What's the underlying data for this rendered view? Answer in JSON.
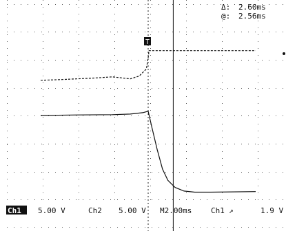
{
  "chart_data": {
    "type": "line",
    "title": "",
    "xlabel": "",
    "ylabel": "",
    "grid": true,
    "x_unit": "ms",
    "x_range": [
      -6.0,
      6.0
    ],
    "y_range": [
      -4,
      4
    ],
    "series": [
      {
        "channel": "Ch1",
        "x": [
          -6.0,
          -5.0,
          -4.0,
          -3.0,
          -2.0,
          -1.0,
          -0.5,
          -0.1,
          0.0,
          0.05,
          6.0
        ],
        "y": [
          2.2,
          2.22,
          2.25,
          2.28,
          2.32,
          2.25,
          2.35,
          2.6,
          3.0,
          3.25,
          3.25
        ]
      },
      {
        "channel": "Ch2",
        "x": [
          -6.0,
          -4.0,
          -2.0,
          -1.0,
          -0.3,
          0.0,
          0.2,
          0.5,
          0.8,
          1.1,
          1.5,
          2.0,
          2.6,
          3.5,
          6.0
        ],
        "y": [
          0.0,
          0.02,
          0.03,
          0.05,
          0.1,
          0.15,
          -0.4,
          -1.2,
          -1.9,
          -2.3,
          -2.55,
          -2.68,
          -2.72,
          -2.72,
          -2.7
        ]
      }
    ],
    "trigger_x": 0.0,
    "cursor_x": 1.4
  },
  "readouts": {
    "delta_symbol": "Δ:",
    "delta_value": "2.60ms",
    "at_symbol": "@:",
    "at_value": "2.56ms"
  },
  "status": {
    "ch1_label": "Ch1",
    "ch1_scale": "5.00 V",
    "ch2_label": "Ch2",
    "ch2_scale": "5.00 V",
    "timebase": "M2.00ms",
    "trig_source": "Ch1",
    "trig_slope": "↗",
    "trig_level": "1.9 V"
  },
  "markers": {
    "trigger_point": "T"
  }
}
